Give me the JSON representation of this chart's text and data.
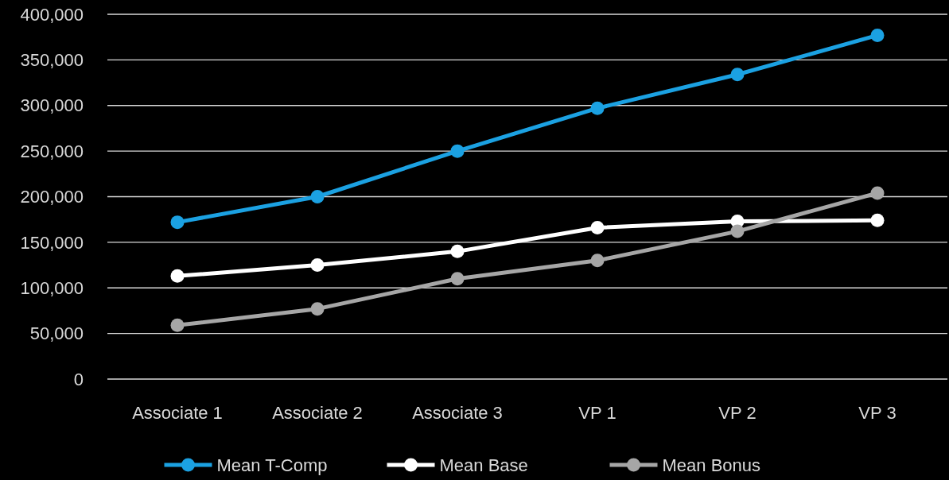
{
  "chart_data": {
    "type": "line",
    "categories": [
      "Associate 1",
      "Associate 2",
      "Associate 3",
      "VP 1",
      "VP 2",
      "VP 3"
    ],
    "series": [
      {
        "name": "Mean T-Comp",
        "color": "#1ba1e2",
        "values": [
          172000,
          200000,
          250000,
          297000,
          334000,
          377000
        ]
      },
      {
        "name": "Mean Base",
        "color": "#ffffff",
        "values": [
          113000,
          125000,
          140000,
          166000,
          173000,
          174000
        ]
      },
      {
        "name": "Mean Bonus",
        "color": "#a6a6a6",
        "values": [
          59000,
          77000,
          110000,
          130000,
          162000,
          204000
        ]
      }
    ],
    "ylim": [
      0,
      400000
    ],
    "yticks": [
      0,
      {
        "value": 50000,
        "label": "50,000"
      },
      {
        "value": 100000,
        "label": "100,000"
      },
      {
        "value": 150000,
        "label": "150,000"
      },
      {
        "value": 200000,
        "label": "200,000"
      },
      {
        "value": 250000,
        "label": "250,000"
      },
      {
        "value": 300000,
        "label": "300,000"
      },
      {
        "value": 350000,
        "label": "350,000"
      },
      {
        "value": 400000,
        "label": "400,000"
      }
    ],
    "grid": "y",
    "legend": "bottom",
    "marker": "circle",
    "line_style": "solid"
  }
}
